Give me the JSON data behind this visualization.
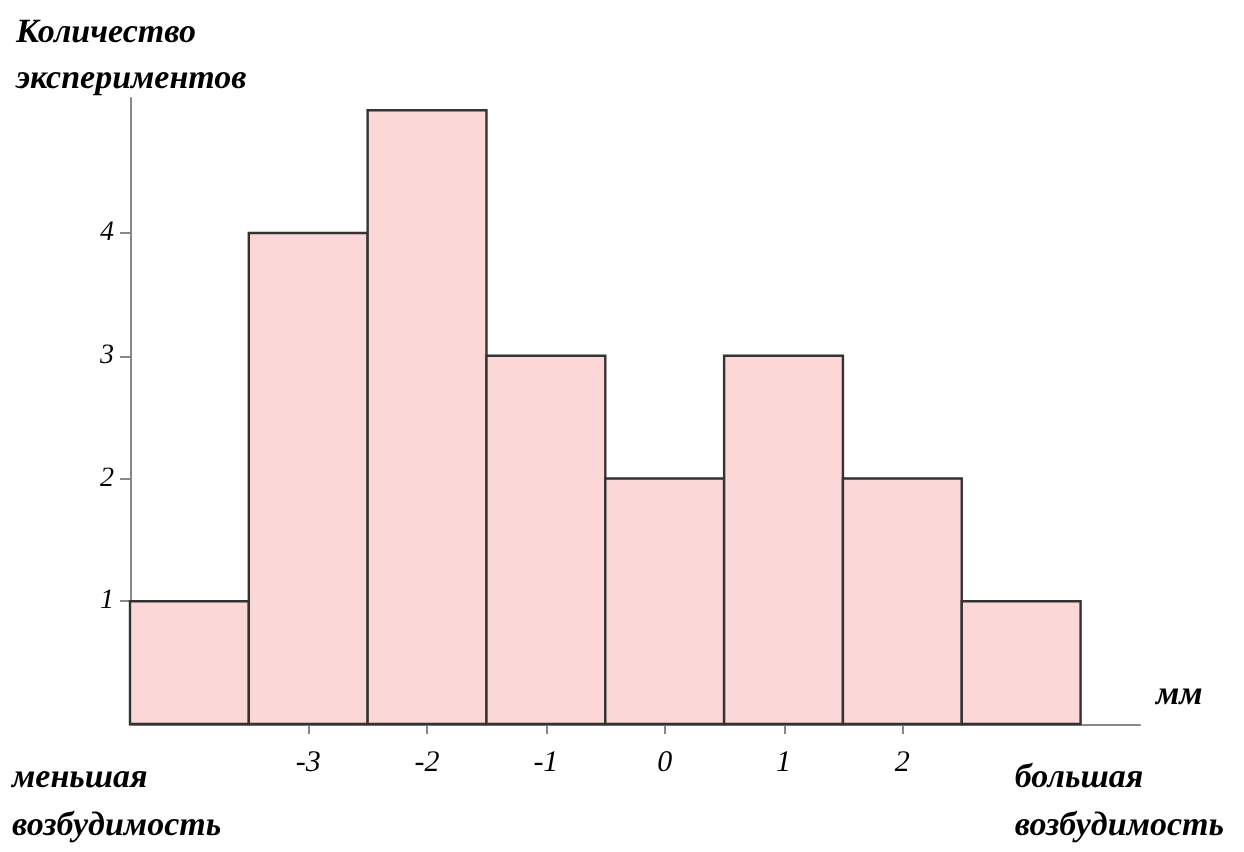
{
  "chart_data": {
    "type": "histogram",
    "ylabel": "Количество экспериментов",
    "xlabel": "мм",
    "bins": [
      -4.5,
      -3.5,
      -2.5,
      -1.5,
      -0.5,
      0.5,
      1.5,
      2.5,
      3.5
    ],
    "values": [
      1,
      4,
      5,
      3,
      2,
      3,
      2,
      1
    ],
    "color": "#fcd7d7",
    "xlim": [
      -4.5,
      4
    ],
    "xticks": [
      -3,
      -2,
      -1,
      0,
      1,
      2
    ],
    "ylim": [
      0,
      5.1
    ],
    "yticks": [
      1,
      2,
      3,
      4
    ],
    "grid": false,
    "annotations": [
      "меньшая возбудимость",
      "большая возбудимость"
    ]
  }
}
